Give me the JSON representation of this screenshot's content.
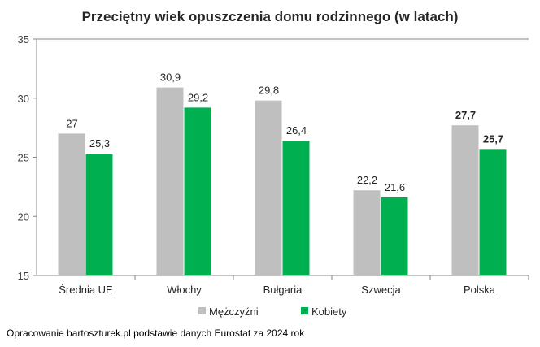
{
  "chart_data": {
    "type": "bar",
    "title": "Przeciętny wiek opuszczenia domu rodzinnego (w latach)",
    "categories": [
      "Średnia UE",
      "Włochy",
      "Bułgaria",
      "Szwecja",
      "Polska"
    ],
    "series": [
      {
        "name": "Mężczyźni",
        "color": "#bfbfbf",
        "values": [
          27,
          30.9,
          29.8,
          22.2,
          27.7
        ],
        "labels": [
          "27",
          "30,9",
          "29,8",
          "22,2",
          "27,7"
        ]
      },
      {
        "name": "Kobiety",
        "color": "#00b050",
        "values": [
          25.3,
          29.2,
          26.4,
          21.6,
          25.7
        ],
        "labels": [
          "25,3",
          "29,2",
          "26,4",
          "21,6",
          "25,7"
        ]
      }
    ],
    "bold_labels_category": "Polska",
    "ylim": [
      15,
      35
    ],
    "yticks": [
      15,
      20,
      25,
      30,
      35
    ],
    "grid": false,
    "legend": "bottom",
    "xlabel": "",
    "ylabel": ""
  },
  "footer": "Opracowanie bartoszturek.pl podstawie danych Eurostat za 2024 rok"
}
